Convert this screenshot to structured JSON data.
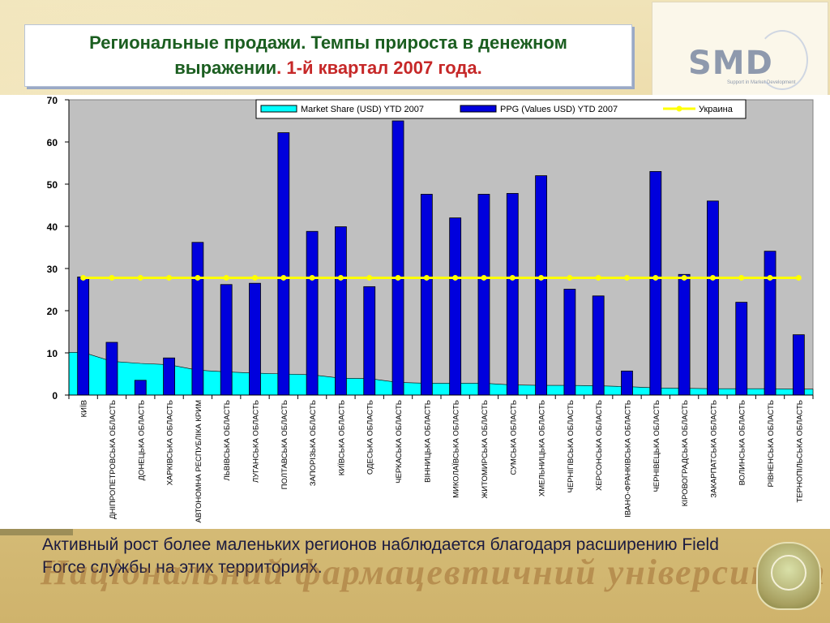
{
  "title": {
    "line1": "Региональные продажи. Темпы прироста в денежном",
    "line2_a": "выражении",
    "line2_b": ". 1-й квартал 2007 года."
  },
  "logo": {
    "text": "SMD",
    "subtitle": "Support in Market Development"
  },
  "caption": "Активный рост более маленьких регионов наблюдается благодаря расширению Field Force службы на этих территориях.",
  "watermark": "Національний фармацевтичний університет",
  "colors": {
    "bar": "#0000dd",
    "area": "#00ffff",
    "line": "#ffff00",
    "plot_bg": "#c0c0c0",
    "title_green": "#1b5e20",
    "title_red": "#c62828"
  },
  "chart_data": {
    "type": "bar",
    "categories": [
      "КИЇВ",
      "ДНІПРОПЕТРОВСЬКА ОБЛАСТЬ",
      "ДОНЕЦЬКА ОБЛАСТЬ",
      "ХАРКІВСЬКА ОБЛАСТЬ",
      "АВТОНОМНА РЕСПУБЛІКА КРИМ",
      "ЛЬВІВСЬКА ОБЛАСТЬ",
      "ЛУГАНСЬКА ОБЛАСТЬ",
      "ПОЛТАВСЬКА ОБЛАСТЬ",
      "ЗАПОРІЗЬКА ОБЛАСТЬ",
      "КИЇВСЬКА ОБЛАСТЬ",
      "ОДЕСЬКА ОБЛАСТЬ",
      "ЧЕРКАСЬКА ОБЛАСТЬ",
      "ВІННИЦЬКА ОБЛАСТЬ",
      "МИКОЛАЇВСЬКА ОБЛАСТЬ",
      "ЖИТОМИРСЬКА ОБЛАСТЬ",
      "СУМСЬКА ОБЛАСТЬ",
      "ХМЕЛЬНИЦЬКА ОБЛАСТЬ",
      "ЧЕРНІГІВСЬКА ОБЛАСТЬ",
      "ХЕРСОНСЬКА ОБЛАСТЬ",
      "ІВАНО-ФРАНКІВСЬКА ОБЛАСТЬ",
      "ЧЕРНІВЕЦЬКА ОБЛАСТЬ",
      "КІРОВОГРАДСЬКА ОБЛАСТЬ",
      "ЗАКАРПАТСЬКА ОБЛАСТЬ",
      "ВОЛИНСЬКА ОБЛАСТЬ",
      "РІВНЕНСЬКА ОБЛАСТЬ",
      "ТЕРНОПІЛЬСЬКА ОБЛАСТЬ"
    ],
    "series": [
      {
        "name": "Market Share (USD) YTD 2007",
        "type": "area",
        "values": [
          10.1,
          8.0,
          7.5,
          7.2,
          5.9,
          5.5,
          5.2,
          5.0,
          4.8,
          4.0,
          3.9,
          3.0,
          2.8,
          2.8,
          2.8,
          2.4,
          2.3,
          2.3,
          2.2,
          2.0,
          1.7,
          1.6,
          1.5,
          1.5,
          1.5,
          1.4
        ]
      },
      {
        "name": "PPG (Values USD) YTD 2007",
        "type": "bar",
        "values": [
          28.0,
          12.5,
          3.5,
          8.8,
          36.2,
          26.2,
          26.5,
          62.2,
          38.8,
          39.9,
          25.7,
          65.0,
          47.6,
          42.0,
          47.6,
          47.8,
          52.0,
          25.1,
          23.5,
          5.7,
          53.0,
          28.6,
          46.0,
          22.0,
          34.1,
          14.3
        ]
      },
      {
        "name": "Украина",
        "type": "line",
        "values": [
          27.8,
          27.8,
          27.8,
          27.8,
          27.8,
          27.8,
          27.8,
          27.8,
          27.8,
          27.8,
          27.8,
          27.8,
          27.8,
          27.8,
          27.8,
          27.8,
          27.8,
          27.8,
          27.8,
          27.8,
          27.8,
          27.8,
          27.8,
          27.8,
          27.8,
          27.8
        ]
      }
    ],
    "yticks": [
      "0",
      "10",
      "20",
      "30",
      "40",
      "50",
      "60",
      "70"
    ],
    "ylim": [
      0,
      70
    ],
    "grid": false,
    "legend_position": "top"
  }
}
